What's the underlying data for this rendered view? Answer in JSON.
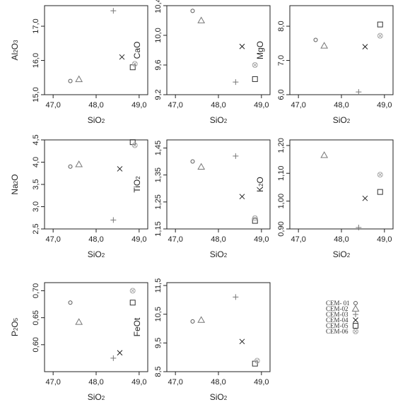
{
  "figure": {
    "legend": {
      "placement": "bottom-right",
      "entries": [
        {
          "label": "CEM- 01",
          "marker": "circle-small",
          "color": "#555555"
        },
        {
          "label": "CEM-02",
          "marker": "triangle",
          "color": "#777777"
        },
        {
          "label": "CEM-03",
          "marker": "plus",
          "color": "#777777"
        },
        {
          "label": "CEM-04",
          "marker": "cross",
          "color": "#222222"
        },
        {
          "label": "CEM-05",
          "marker": "square",
          "color": "#333333"
        },
        {
          "label": "CEM-06",
          "marker": "circle-cross",
          "color": "#aaaaaa"
        }
      ]
    }
  },
  "chart_data": [
    {
      "type": "scatter",
      "title": "",
      "xlabel": "SiO2",
      "ylabel": "Al2O3",
      "xlim": [
        46.8,
        49.2
      ],
      "ylim": [
        15.0,
        17.6
      ],
      "x_ticks": [
        47.0,
        48.0,
        49.0
      ],
      "x_tick_labels": [
        "47,0",
        "48,0",
        "49,0"
      ],
      "y_ticks": [
        15.0,
        16.0,
        17.0
      ],
      "y_tick_labels": [
        "15,0",
        "16,0",
        "17,0"
      ],
      "grid": false,
      "series": [
        {
          "name": "CEM- 01",
          "x": [
            47.4
          ],
          "y": [
            15.4
          ]
        },
        {
          "name": "CEM-02",
          "x": [
            47.6
          ],
          "y": [
            15.45
          ]
        },
        {
          "name": "CEM-03",
          "x": [
            48.4
          ],
          "y": [
            17.45
          ]
        },
        {
          "name": "CEM-04",
          "x": [
            48.6
          ],
          "y": [
            16.1
          ]
        },
        {
          "name": "CEM-05",
          "x": [
            48.85
          ],
          "y": [
            15.8
          ]
        },
        {
          "name": "CEM-06",
          "x": [
            48.9
          ],
          "y": [
            15.9
          ]
        }
      ]
    },
    {
      "type": "scatter",
      "title": "",
      "xlabel": "SiO2",
      "ylabel": "CaO",
      "xlim": [
        46.8,
        49.2
      ],
      "ylim": [
        9.2,
        10.4
      ],
      "x_ticks": [
        47.0,
        48.0,
        49.0
      ],
      "x_tick_labels": [
        "47,0",
        "48,0",
        "49,0"
      ],
      "y_ticks": [
        9.2,
        9.6,
        10.0,
        10.4
      ],
      "y_tick_labels": [
        "9,2",
        "9,6",
        "10,0",
        "10,4"
      ],
      "grid": false,
      "series": [
        {
          "name": "CEM- 01",
          "x": [
            47.4
          ],
          "y": [
            10.33
          ]
        },
        {
          "name": "CEM-02",
          "x": [
            47.6
          ],
          "y": [
            10.2
          ]
        },
        {
          "name": "CEM-03",
          "x": [
            48.4
          ],
          "y": [
            9.37
          ]
        },
        {
          "name": "CEM-04",
          "x": [
            48.55
          ],
          "y": [
            9.85
          ]
        },
        {
          "name": "CEM-05",
          "x": [
            48.85
          ],
          "y": [
            9.41
          ]
        },
        {
          "name": "CEM-06",
          "x": [
            48.85
          ],
          "y": [
            9.6
          ]
        }
      ]
    },
    {
      "type": "scatter",
      "title": "",
      "xlabel": "SiO2",
      "ylabel": "MgO",
      "xlim": [
        46.8,
        49.2
      ],
      "ylim": [
        6.0,
        8.6
      ],
      "x_ticks": [
        47.0,
        48.0,
        49.0
      ],
      "x_tick_labels": [
        "47,0",
        "48,0",
        "49,0"
      ],
      "y_ticks": [
        6.0,
        7.0,
        8.0
      ],
      "y_tick_labels": [
        "6,0",
        "7,0",
        "8,0"
      ],
      "grid": false,
      "series": [
        {
          "name": "CEM- 01",
          "x": [
            47.4
          ],
          "y": [
            7.6
          ]
        },
        {
          "name": "CEM-02",
          "x": [
            47.6
          ],
          "y": [
            7.43
          ]
        },
        {
          "name": "CEM-03",
          "x": [
            48.4
          ],
          "y": [
            6.08
          ]
        },
        {
          "name": "CEM-04",
          "x": [
            48.55
          ],
          "y": [
            7.4
          ]
        },
        {
          "name": "CEM-05",
          "x": [
            48.9
          ],
          "y": [
            8.05
          ]
        },
        {
          "name": "CEM-06",
          "x": [
            48.9
          ],
          "y": [
            7.72
          ]
        }
      ]
    },
    {
      "type": "scatter",
      "title": "",
      "xlabel": "SiO2",
      "ylabel": "Na2O",
      "xlim": [
        46.8,
        49.2
      ],
      "ylim": [
        2.5,
        4.5
      ],
      "x_ticks": [
        47.0,
        48.0,
        49.0
      ],
      "x_tick_labels": [
        "47,0",
        "48,0",
        "49,0"
      ],
      "y_ticks": [
        2.5,
        3.0,
        3.5,
        4.0,
        4.5
      ],
      "y_tick_labels": [
        "2,5",
        "3,0",
        "3,5",
        "4,0",
        "4,5"
      ],
      "grid": false,
      "series": [
        {
          "name": "CEM- 01",
          "x": [
            47.4
          ],
          "y": [
            3.9
          ]
        },
        {
          "name": "CEM-02",
          "x": [
            47.6
          ],
          "y": [
            3.95
          ]
        },
        {
          "name": "CEM-03",
          "x": [
            48.4
          ],
          "y": [
            2.7
          ]
        },
        {
          "name": "CEM-04",
          "x": [
            48.55
          ],
          "y": [
            3.85
          ]
        },
        {
          "name": "CEM-05",
          "x": [
            48.85
          ],
          "y": [
            4.45
          ]
        },
        {
          "name": "CEM-06",
          "x": [
            48.9
          ],
          "y": [
            4.38
          ]
        }
      ]
    },
    {
      "type": "scatter",
      "title": "",
      "xlabel": "SiO2",
      "ylabel": "TiO2",
      "xlim": [
        46.8,
        49.2
      ],
      "ylim": [
        1.15,
        1.48
      ],
      "x_ticks": [
        47.0,
        48.0,
        49.0
      ],
      "x_tick_labels": [
        "47,0",
        "48,0",
        "49,0"
      ],
      "y_ticks": [
        1.15,
        1.25,
        1.35,
        1.45
      ],
      "y_tick_labels": [
        "1,15",
        "1,25",
        "1,35",
        "1,45"
      ],
      "grid": false,
      "series": [
        {
          "name": "CEM- 01",
          "x": [
            47.4
          ],
          "y": [
            1.4
          ]
        },
        {
          "name": "CEM-02",
          "x": [
            47.6
          ],
          "y": [
            1.38
          ]
        },
        {
          "name": "CEM-03",
          "x": [
            48.4
          ],
          "y": [
            1.42
          ]
        },
        {
          "name": "CEM-04",
          "x": [
            48.55
          ],
          "y": [
            1.27
          ]
        },
        {
          "name": "CEM-05",
          "x": [
            48.85
          ],
          "y": [
            1.18
          ]
        },
        {
          "name": "CEM-06",
          "x": [
            48.85
          ],
          "y": [
            1.19
          ]
        }
      ]
    },
    {
      "type": "scatter",
      "title": "",
      "xlabel": "SiO2",
      "ylabel": "K2O",
      "xlim": [
        46.8,
        49.2
      ],
      "ylim": [
        0.9,
        1.22
      ],
      "x_ticks": [
        47.0,
        48.0,
        49.0
      ],
      "x_tick_labels": [
        "47,0",
        "48,0",
        "49,0"
      ],
      "y_ticks": [
        0.9,
        1.0,
        1.1,
        1.2
      ],
      "y_tick_labels": [
        "0,90",
        "1,00",
        "1,10",
        "1,20"
      ],
      "grid": false,
      "series": [
        {
          "name": "CEM-02",
          "x": [
            47.6
          ],
          "y": [
            1.165
          ]
        },
        {
          "name": "CEM-03",
          "x": [
            48.4
          ],
          "y": [
            0.905
          ]
        },
        {
          "name": "CEM-04",
          "x": [
            48.55
          ],
          "y": [
            1.01
          ]
        },
        {
          "name": "CEM-05",
          "x": [
            48.9
          ],
          "y": [
            1.033
          ]
        },
        {
          "name": "CEM-06",
          "x": [
            48.9
          ],
          "y": [
            1.095
          ]
        }
      ]
    },
    {
      "type": "scatter",
      "title": "",
      "xlabel": "SiO2",
      "ylabel": "P2O5",
      "xlim": [
        46.8,
        49.2
      ],
      "ylim": [
        0.55,
        0.715
      ],
      "x_ticks": [
        47.0,
        48.0,
        49.0
      ],
      "x_tick_labels": [
        "47,0",
        "48,0",
        "49,0"
      ],
      "y_ticks": [
        0.6,
        0.65,
        0.7
      ],
      "y_tick_labels": [
        "0,60",
        "0,65",
        "0,70"
      ],
      "grid": false,
      "series": [
        {
          "name": "CEM- 01",
          "x": [
            47.4
          ],
          "y": [
            0.678
          ]
        },
        {
          "name": "CEM-02",
          "x": [
            47.6
          ],
          "y": [
            0.642
          ]
        },
        {
          "name": "CEM-03",
          "x": [
            48.4
          ],
          "y": [
            0.575
          ]
        },
        {
          "name": "CEM-04",
          "x": [
            48.55
          ],
          "y": [
            0.585
          ]
        },
        {
          "name": "CEM-05",
          "x": [
            48.85
          ],
          "y": [
            0.678
          ]
        },
        {
          "name": "CEM-06",
          "x": [
            48.85
          ],
          "y": [
            0.7
          ]
        }
      ]
    },
    {
      "type": "scatter",
      "title": "",
      "xlabel": "SiO2",
      "ylabel": "FeOt",
      "xlim": [
        46.8,
        49.2
      ],
      "ylim": [
        8.5,
        11.6
      ],
      "x_ticks": [
        47.0,
        48.0,
        49.0
      ],
      "x_tick_labels": [
        "47,0",
        "48,0",
        "49,0"
      ],
      "y_ticks": [
        8.5,
        9.5,
        10.5,
        11.5
      ],
      "y_tick_labels": [
        "8,5",
        "9,5",
        "10,5",
        "11,5"
      ],
      "grid": false,
      "series": [
        {
          "name": "CEM- 01",
          "x": [
            47.4
          ],
          "y": [
            10.25
          ]
        },
        {
          "name": "CEM-02",
          "x": [
            47.6
          ],
          "y": [
            10.3
          ]
        },
        {
          "name": "CEM-03",
          "x": [
            48.4
          ],
          "y": [
            11.1
          ]
        },
        {
          "name": "CEM-04",
          "x": [
            48.55
          ],
          "y": [
            9.55
          ]
        },
        {
          "name": "CEM-05",
          "x": [
            48.85
          ],
          "y": [
            8.78
          ]
        },
        {
          "name": "CEM-06",
          "x": [
            48.9
          ],
          "y": [
            8.88
          ]
        }
      ]
    }
  ]
}
